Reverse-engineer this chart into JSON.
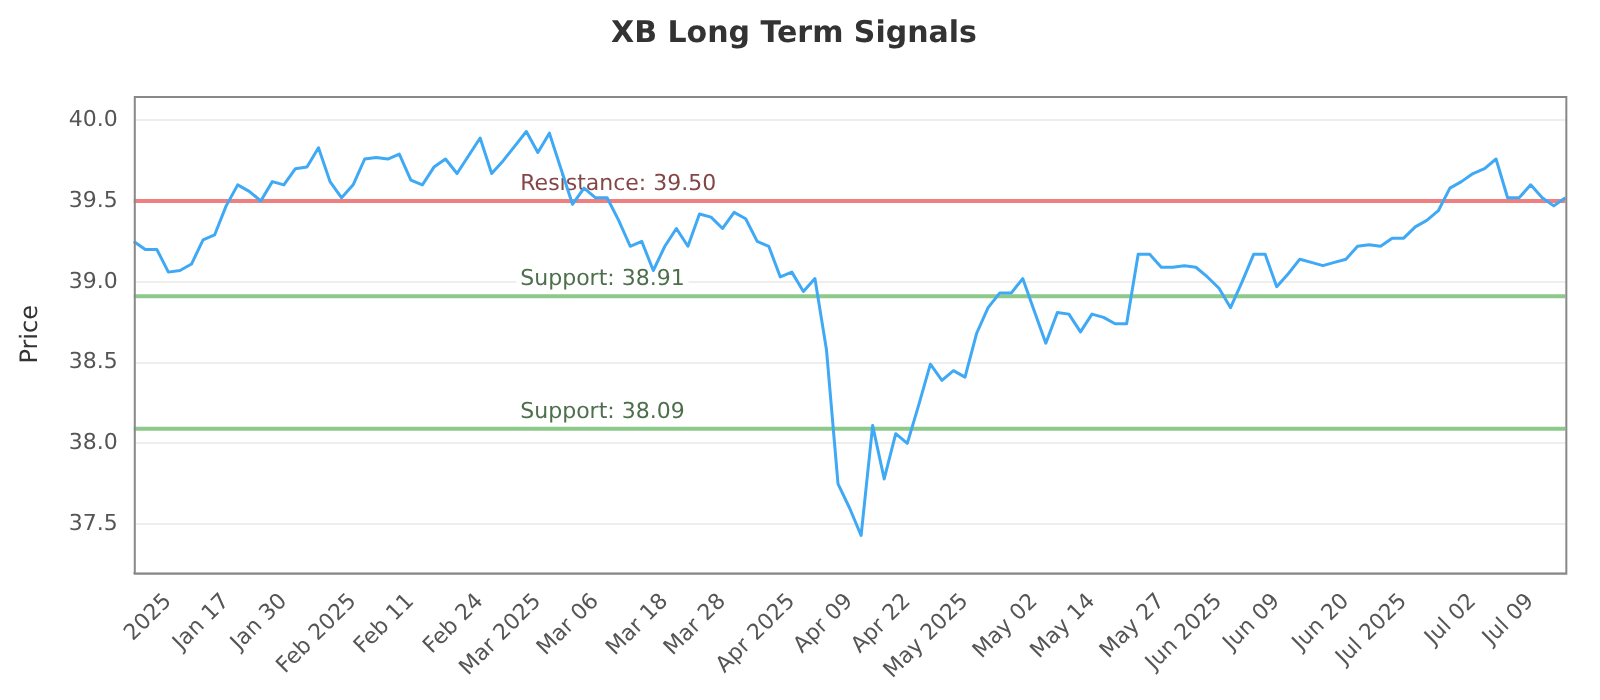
{
  "chart_data": {
    "type": "line",
    "title": "XB Long Term Signals",
    "ylabel": "Price",
    "categories": [
      null,
      null,
      null,
      "2025",
      null,
      null,
      null,
      null,
      "Jan 17",
      null,
      null,
      null,
      null,
      "Jan 30",
      null,
      null,
      null,
      null,
      null,
      "Feb 2025",
      null,
      null,
      null,
      null,
      "Feb 11",
      null,
      null,
      null,
      null,
      null,
      "Feb 24",
      null,
      null,
      null,
      null,
      "Mar 2025",
      null,
      null,
      null,
      null,
      "Mar 06",
      null,
      null,
      null,
      null,
      null,
      "Mar 18",
      null,
      null,
      null,
      null,
      "Mar 28",
      null,
      null,
      null,
      null,
      null,
      "Apr 2025",
      null,
      null,
      null,
      null,
      "Apr 09",
      null,
      null,
      null,
      null,
      "Apr 22",
      null,
      null,
      null,
      null,
      "May 2025",
      null,
      null,
      null,
      null,
      null,
      "May 02",
      null,
      null,
      null,
      null,
      "May 14",
      null,
      null,
      null,
      null,
      null,
      "May 27",
      null,
      null,
      null,
      null,
      "Jun 2025",
      null,
      null,
      null,
      null,
      "Jun 09",
      null,
      null,
      null,
      null,
      null,
      "Jun 20",
      null,
      null,
      null,
      null,
      "Jul 2025",
      null,
      null,
      null,
      null,
      null,
      "Jul 02",
      null,
      null,
      null,
      null,
      "Jul 09",
      null,
      null,
      null
    ],
    "series": [
      {
        "color": "#3fa9f5",
        "values": [
          39.25,
          39.2,
          39.2,
          39.06,
          39.07,
          39.11,
          39.26,
          39.29,
          39.47,
          39.6,
          39.56,
          39.5,
          39.62,
          39.6,
          39.7,
          39.71,
          39.83,
          39.62,
          39.52,
          39.6,
          39.76,
          39.77,
          39.76,
          39.79,
          39.63,
          39.6,
          39.71,
          39.76,
          39.67,
          39.78,
          39.89,
          39.67,
          39.75,
          39.84,
          39.93,
          39.8,
          39.92,
          39.7,
          39.48,
          39.58,
          39.52,
          39.52,
          39.38,
          39.22,
          39.25,
          39.07,
          39.22,
          39.33,
          39.22,
          39.42,
          39.4,
          39.33,
          39.43,
          39.39,
          39.25,
          39.22,
          39.03,
          39.06,
          38.94,
          39.02,
          38.58,
          37.75,
          37.6,
          37.43,
          38.11,
          37.78,
          38.06,
          38.0,
          38.24,
          38.49,
          38.39,
          38.45,
          38.41,
          38.68,
          38.84,
          38.93,
          38.93,
          39.02,
          38.82,
          38.62,
          38.81,
          38.8,
          38.69,
          38.8,
          38.78,
          38.74,
          38.74,
          39.17,
          39.17,
          39.09,
          39.09,
          39.1,
          39.09,
          39.03,
          38.96,
          38.84,
          39.0,
          39.17,
          39.17,
          38.97,
          39.05,
          39.14,
          39.12,
          39.1,
          39.12,
          39.14,
          39.22,
          39.23,
          39.22,
          39.27,
          39.27,
          39.34,
          39.38,
          39.44,
          39.58,
          39.62,
          39.67,
          39.7,
          39.76,
          39.52,
          39.52,
          39.6,
          39.52,
          39.47,
          39.52
        ]
      }
    ],
    "ylim": [
      37.2,
      40.15
    ],
    "yticks": [
      {
        "value": 37.5,
        "label": "37.5"
      },
      {
        "value": 38,
        "label": "38.0"
      },
      {
        "value": 38.5,
        "label": "38.5"
      },
      {
        "value": 39,
        "label": "39.0"
      },
      {
        "value": 39.5,
        "label": "39.5"
      },
      {
        "value": 40,
        "label": "40.0"
      }
    ],
    "ref_lines": [
      {
        "axis": "y",
        "value": 39.5,
        "label": "Resistance: 39.50",
        "color": "#f08080"
      },
      {
        "axis": "y",
        "value": 38.91,
        "label": "Support: 38.91",
        "color": "#8cc98a"
      },
      {
        "axis": "y",
        "value": 38.09,
        "label": "Support: 38.09",
        "color": "#8cc98a"
      }
    ],
    "grid": "y",
    "legend": false,
    "marker": "none",
    "line_style": "solid"
  }
}
